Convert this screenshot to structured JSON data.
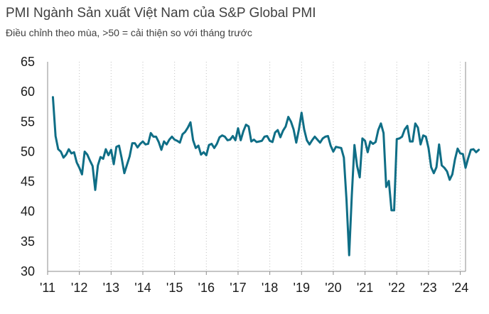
{
  "chart_data": {
    "type": "line",
    "title": "PMI Ngành Sản xuất Việt Nam của S&P Global PMI",
    "subtitle": "Điều chỉnh theo mùa, >50 = cải thiện so với tháng trước",
    "xlabel": "",
    "ylabel": "",
    "ylim": [
      30,
      65
    ],
    "yticks": [
      30,
      35,
      40,
      45,
      50,
      55,
      60,
      65
    ],
    "xticks": [
      "'11",
      "'12",
      "'13",
      "'14",
      "'15",
      "'16",
      "'17",
      "'18",
      "'19",
      "'20",
      "'21",
      "'22",
      "'23",
      "'24"
    ],
    "grid": "vertical",
    "line_color": "#0f6e86",
    "grid_color": "#bfbfbf",
    "series": [
      {
        "name": "",
        "x_start": "2011-03",
        "x_step": "month",
        "values": [
          59.1,
          52.6,
          50.4,
          50.0,
          49.0,
          49.5,
          50.4,
          49.7,
          49.9,
          48.2,
          47.3,
          46.2,
          50.0,
          49.5,
          48.5,
          47.6,
          43.6,
          47.7,
          49.1,
          48.8,
          50.4,
          49.4,
          50.3,
          47.9,
          50.8,
          51.0,
          48.9,
          46.4,
          47.8,
          49.2,
          51.4,
          51.4,
          50.7,
          51.3,
          51.7,
          51.2,
          51.3,
          53.1,
          52.5,
          52.5,
          51.6,
          50.3,
          51.7,
          51.2,
          52.0,
          52.5,
          52.0,
          51.8,
          51.5,
          52.9,
          53.3,
          54.0,
          54.9,
          51.9,
          50.6,
          51.0,
          49.5,
          49.9,
          49.4,
          51.1,
          51.3,
          50.6,
          51.3,
          52.4,
          52.7,
          52.5,
          51.9,
          52.0,
          52.6,
          51.9,
          53.9,
          51.9,
          53.4,
          54.5,
          54.2,
          51.7,
          52.0,
          51.6,
          51.7,
          51.8,
          52.5,
          52.6,
          51.8,
          51.6,
          53.2,
          53.6,
          52.4,
          53.5,
          54.2,
          55.8,
          55.0,
          53.7,
          51.5,
          53.7,
          56.5,
          53.7,
          51.9,
          51.2,
          51.9,
          52.5,
          52.0,
          51.5,
          52.2,
          52.5,
          52.6,
          51.0,
          50.0,
          50.8,
          50.7,
          50.6,
          49.0,
          41.9,
          32.7,
          42.7,
          51.1,
          47.6,
          45.7,
          52.2,
          51.8,
          49.9,
          51.7,
          51.3,
          51.6,
          53.6,
          54.7,
          53.1,
          44.1,
          45.1,
          40.2,
          40.2,
          52.1,
          52.2,
          52.5,
          53.7,
          54.3,
          51.7,
          51.7,
          54.7,
          54.0,
          51.2,
          52.7,
          52.5,
          50.6,
          47.4,
          46.4,
          47.4,
          51.2,
          47.7,
          47.3,
          46.7,
          45.3,
          46.2,
          48.7,
          50.5,
          49.7,
          49.6,
          47.3,
          48.9,
          50.3,
          50.4,
          49.9,
          50.3
        ]
      }
    ]
  }
}
